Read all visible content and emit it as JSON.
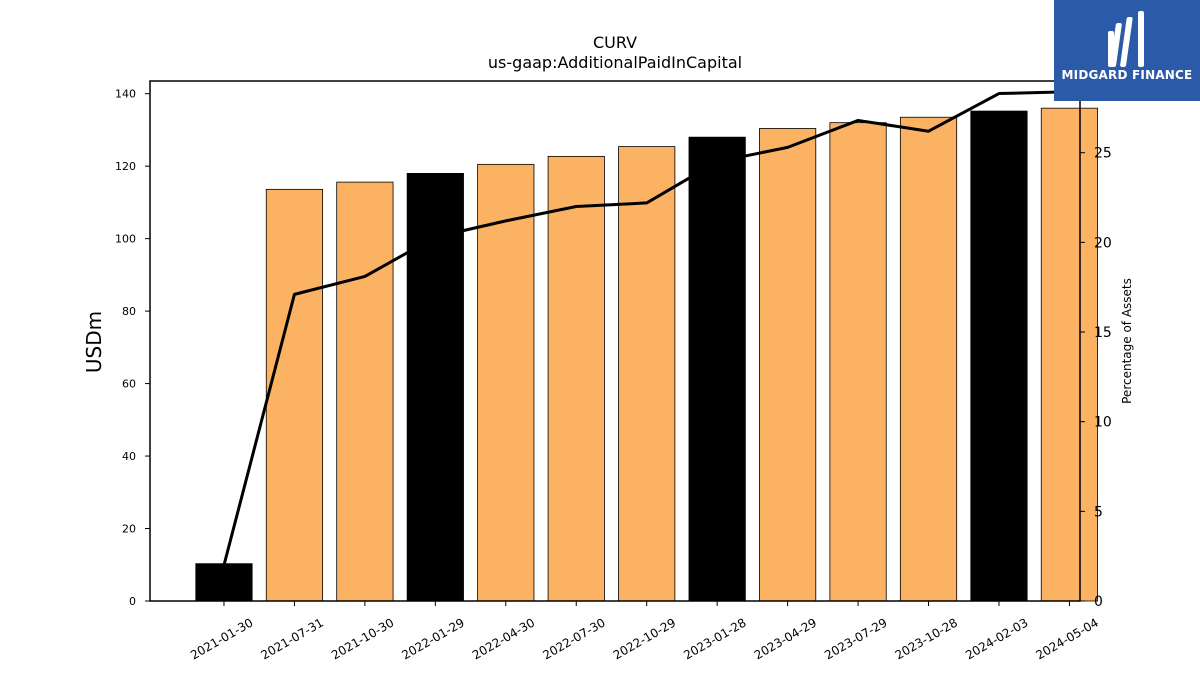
{
  "chart_data": {
    "type": "bar",
    "title": "CURV",
    "subtitle": "us-gaap:AdditionalPaidInCapital",
    "ylabel": "USDm",
    "y2label": "Percentage of Assets",
    "categories": [
      "2021-01-30",
      "2021-07-31",
      "2021-10-30",
      "2022-01-29",
      "2022-04-30",
      "2022-07-30",
      "2022-10-29",
      "2023-01-28",
      "2023-04-29",
      "2023-07-29",
      "2023-10-28",
      "2024-02-03",
      "2024-05-04"
    ],
    "series": [
      {
        "values": [
          10.3,
          113.6,
          115.6,
          118.0,
          120.5,
          122.7,
          125.4,
          128.0,
          130.4,
          132.0,
          133.5,
          135.2,
          136.0
        ]
      },
      {
        "axis": "secondary",
        "type": "line",
        "values": [
          2.0,
          17.1,
          18.1,
          20.3,
          21.2,
          22.0,
          22.2,
          24.5,
          25.3,
          26.8,
          26.2,
          28.3,
          28.4
        ]
      }
    ],
    "bar_colors": [
      "#000000",
      "#fbb263",
      "#fbb263",
      "#000000",
      "#fbb263",
      "#fbb263",
      "#fbb263",
      "#000000",
      "#fbb263",
      "#fbb263",
      "#fbb263",
      "#000000",
      "#fbb263"
    ],
    "line_color": "#000000",
    "ylim": [
      0,
      143.5
    ],
    "yticks": [
      0,
      20,
      40,
      60,
      80,
      100,
      120,
      140
    ],
    "y2lim": [
      0,
      29
    ],
    "y2ticks": [
      0,
      5,
      10,
      15,
      20,
      25
    ],
    "grid": false
  },
  "logo": {
    "name": "MIDGARD FINANCE",
    "background": "#2b5aa8"
  }
}
